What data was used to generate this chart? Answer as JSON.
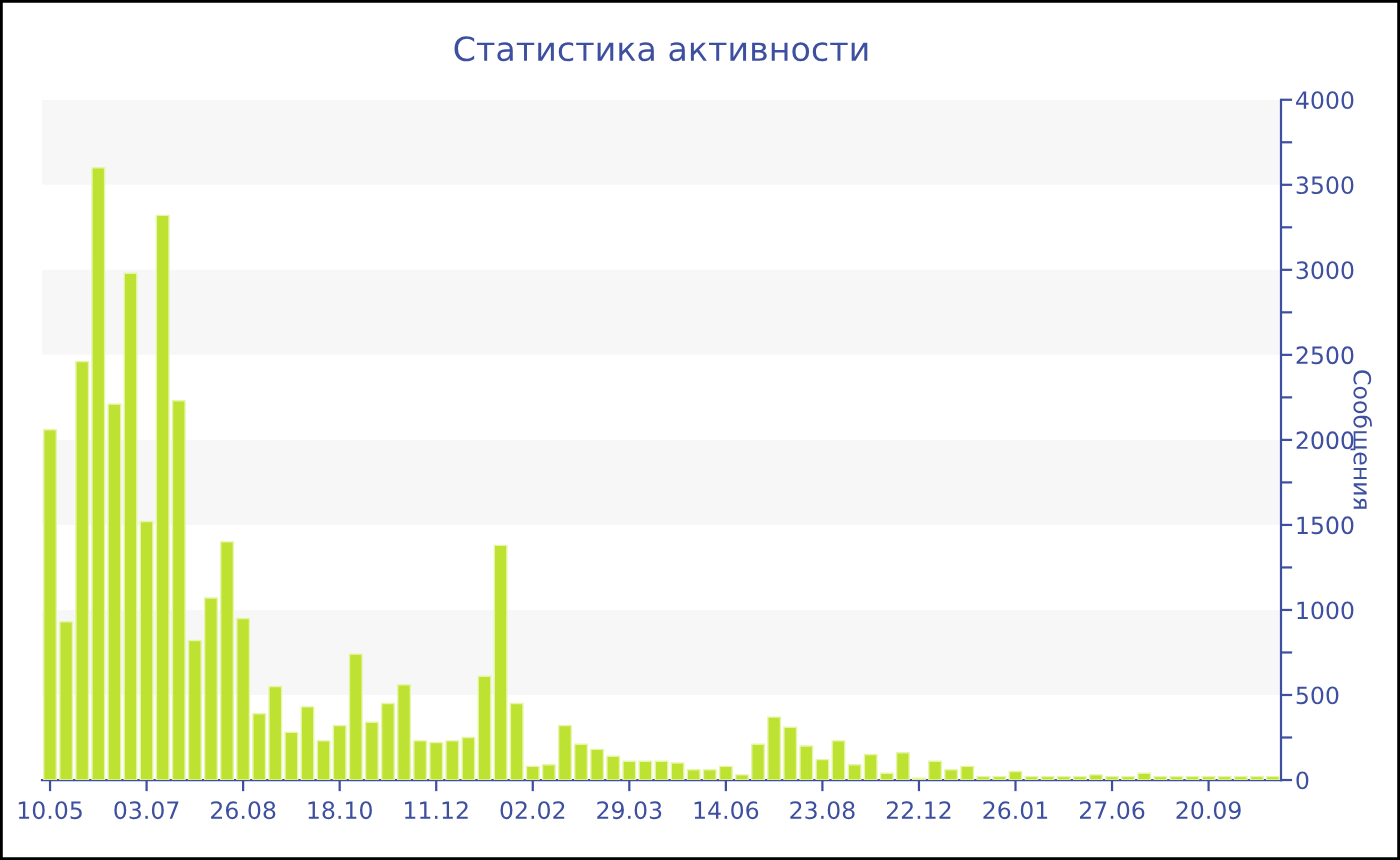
{
  "chart_data": {
    "type": "bar",
    "title": "Статистика активности",
    "ylabel": "Сообщения",
    "categories": [
      "10.05",
      null,
      null,
      null,
      null,
      null,
      "03.07",
      null,
      null,
      null,
      null,
      null,
      "26.08",
      null,
      null,
      null,
      null,
      null,
      "18.10",
      null,
      null,
      null,
      null,
      null,
      "11.12",
      null,
      null,
      null,
      null,
      null,
      "02.02",
      null,
      null,
      null,
      null,
      null,
      "29.03",
      null,
      null,
      null,
      null,
      null,
      "14.06",
      null,
      null,
      null,
      null,
      null,
      "23.08",
      null,
      null,
      null,
      null,
      null,
      "22.12",
      null,
      null,
      null,
      null,
      null,
      "26.01",
      null,
      null,
      null,
      null,
      null,
      "27.06",
      null,
      null,
      null,
      null,
      null,
      "20.09",
      null,
      null,
      null,
      null
    ],
    "values": [
      2060,
      930,
      2460,
      3600,
      2210,
      2980,
      1520,
      3320,
      2230,
      820,
      1070,
      1400,
      950,
      390,
      550,
      280,
      430,
      230,
      320,
      740,
      340,
      450,
      560,
      230,
      220,
      230,
      250,
      610,
      1380,
      450,
      80,
      90,
      320,
      210,
      180,
      140,
      110,
      110,
      110,
      100,
      60,
      60,
      80,
      30,
      210,
      370,
      310,
      200,
      120,
      230,
      90,
      150,
      40,
      160,
      10,
      110,
      60,
      80,
      20,
      20,
      50,
      20,
      20,
      20,
      20,
      30,
      20,
      20,
      40,
      20,
      20,
      20,
      20,
      20,
      20,
      20,
      20
    ],
    "color": "#bde232",
    "ylim": [
      0,
      4000
    ],
    "yticks": [
      0,
      {
        "value": 250,
        "label": null
      },
      500,
      {
        "value": 750,
        "label": null
      },
      1000,
      {
        "value": 1250,
        "label": null
      },
      1500,
      {
        "value": 1750,
        "label": null
      },
      2000,
      {
        "value": 2250,
        "label": null
      },
      2500,
      {
        "value": 2750,
        "label": null
      },
      3000,
      {
        "value": 3250,
        "label": null
      },
      3500,
      {
        "value": 3750,
        "label": null
      },
      4000
    ],
    "bands": [
      {
        "axis": "y",
        "from": 500,
        "to": 1000,
        "color": "#f7f7f7"
      },
      {
        "axis": "y",
        "from": 1500,
        "to": 2000,
        "color": "#f7f7f7"
      },
      {
        "axis": "y",
        "from": 2500,
        "to": 3000,
        "color": "#f7f7f7"
      },
      {
        "axis": "y",
        "from": 3500,
        "to": 4000,
        "color": "#f7f7f7"
      }
    ],
    "grid": false,
    "legend": false
  }
}
